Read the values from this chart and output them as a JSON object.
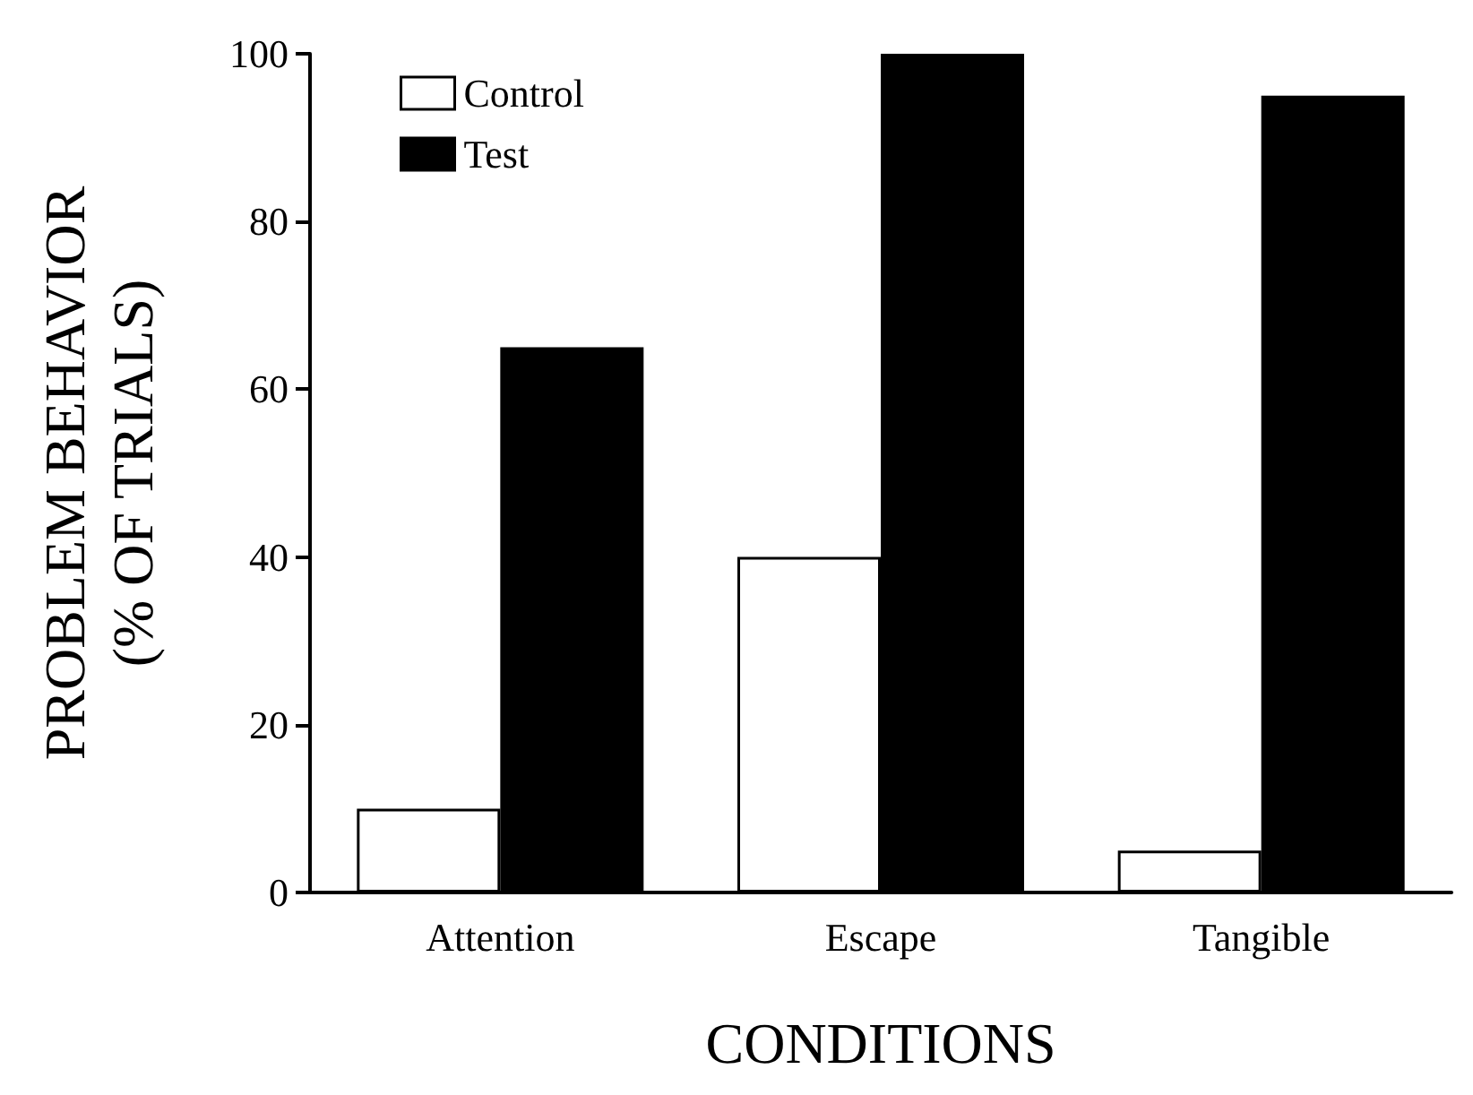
{
  "chart_data": {
    "type": "bar",
    "xlabel": "CONDITIONS",
    "ylabel": "PROBLEM BEHAVIOR\n(% OF TRIALS)",
    "categories": [
      "Attention",
      "Escape",
      "Tangible"
    ],
    "series": [
      {
        "name": "Control",
        "color": "#ffffff",
        "values": [
          10,
          40,
          5
        ]
      },
      {
        "name": "Test",
        "color": "#000000",
        "values": [
          65,
          100,
          95
        ]
      }
    ],
    "ylim": [
      0,
      100
    ],
    "yticks": [
      0,
      20,
      40,
      60,
      80,
      100
    ],
    "grid": false,
    "legend": "top left"
  }
}
